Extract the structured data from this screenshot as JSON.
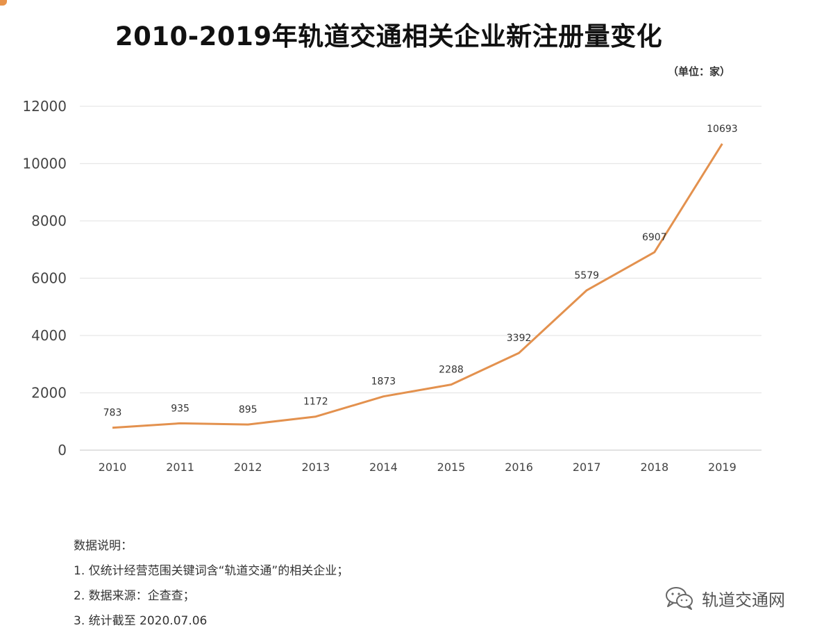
{
  "header": {
    "title": "2010-2019年轨道交通相关企业新注册量变化",
    "unit": "（单位：家）"
  },
  "chart_data": {
    "type": "line",
    "title": "2010-2019年轨道交通相关企业新注册量变化",
    "unit": "（单位：家）",
    "xlabel": "",
    "ylabel": "",
    "categories": [
      "2010",
      "2011",
      "2012",
      "2013",
      "2014",
      "2015",
      "2016",
      "2017",
      "2018",
      "2019"
    ],
    "series": [
      {
        "values": [
          783,
          935,
          895,
          1172,
          1873,
          2288,
          3392,
          5579,
          6907,
          10693
        ]
      }
    ],
    "ylim": [
      0,
      12000
    ],
    "yticks": [
      0,
      2000,
      4000,
      6000,
      8000,
      10000,
      12000
    ],
    "grid": true,
    "data_labels": true,
    "line_color": "#e3914e",
    "grid_color": "#e6e6e6"
  },
  "notes": {
    "heading": "数据说明：",
    "items": [
      "1. 仅统计经营范围关键词含“轨道交通”的相关企业；",
      "2. 数据来源：企查查；",
      "3. 统计截至 2020.07.06"
    ]
  },
  "watermark": {
    "text": "轨道交通网",
    "icon": "wechat-icon"
  },
  "colors": {
    "accent": "#e3914e",
    "text": "#222222"
  }
}
